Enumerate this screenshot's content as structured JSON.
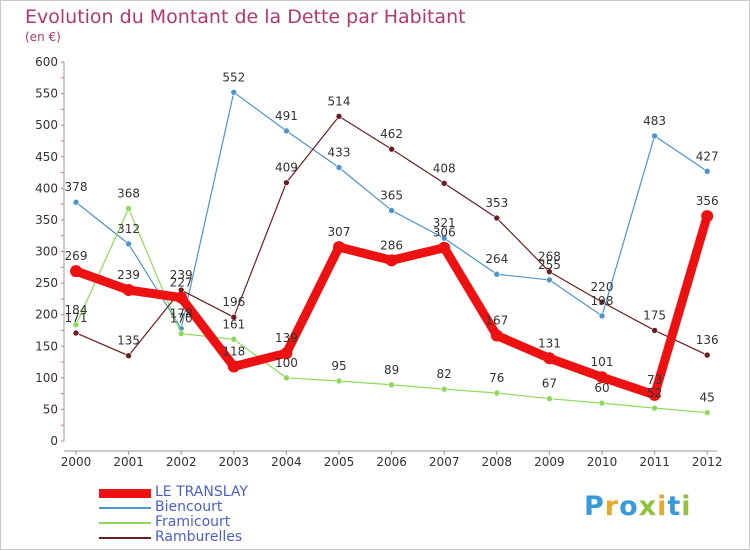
{
  "chart_data": {
    "type": "line",
    "title": "Evolution du Montant de la Dette par Habitant",
    "subtitle": "(en €)",
    "x": [
      "2000",
      "2001",
      "2002",
      "2003",
      "2004",
      "2005",
      "2006",
      "2007",
      "2008",
      "2009",
      "2010",
      "2011",
      "2012"
    ],
    "ylim": [
      0,
      600
    ],
    "yticks": [
      0,
      50,
      100,
      150,
      200,
      250,
      300,
      350,
      400,
      450,
      500,
      550,
      600
    ],
    "grid": false,
    "legend_position": "bottom-left",
    "series": [
      {
        "name": "LE TRANSLAY",
        "color": "#ee1111",
        "values": [
          269,
          239,
          227,
          118,
          139,
          307,
          286,
          306,
          167,
          131,
          101,
          73,
          356
        ],
        "labels": [
          "269",
          "239",
          "227",
          "118",
          "139",
          "307",
          "286",
          "306",
          "167",
          "131",
          "101",
          "73",
          "356"
        ]
      },
      {
        "name": "Biencourt",
        "color": "#4f93cf",
        "values": [
          378,
          312,
          178,
          552,
          491,
          433,
          365,
          321,
          264,
          255,
          198,
          483,
          427
        ],
        "labels": [
          "378",
          "312",
          "178",
          "552",
          "491",
          "433",
          "365",
          "321",
          "264",
          "255",
          "198",
          "483",
          "427"
        ]
      },
      {
        "name": "Framicourt",
        "color": "#8fd858",
        "values": [
          184,
          368,
          170,
          161,
          100,
          95,
          89,
          82,
          76,
          67,
          60,
          52,
          45
        ],
        "labels": [
          "184",
          "368",
          "170",
          "161",
          "100",
          "95",
          "89",
          "82",
          "76",
          "67",
          "60",
          "52",
          "45"
        ]
      },
      {
        "name": "Ramburelles",
        "color": "#6b1e22",
        "values": [
          171,
          135,
          239,
          196,
          409,
          514,
          462,
          408,
          353,
          268,
          220,
          175,
          136
        ],
        "labels": [
          "171",
          "135",
          "239",
          "196",
          "409",
          "514",
          "462",
          "408",
          "353",
          "268",
          "220",
          "175",
          "136"
        ]
      }
    ]
  },
  "logo": {
    "text": "Proxiti"
  }
}
